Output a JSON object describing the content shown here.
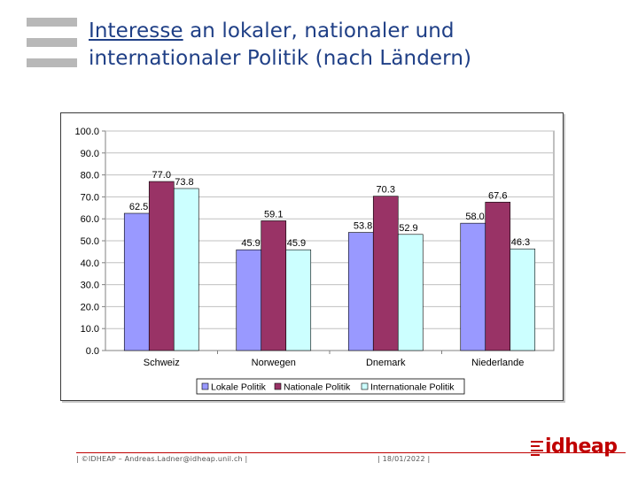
{
  "header": {
    "title_underlined": "Interesse",
    "title_rest": " an lokaler, nationaler und",
    "title_line2": "internationaler Politik (nach Ländern)"
  },
  "footer": {
    "left": "| ©IDHEAP – Andreas.Ladner@idheap.unil.ch |",
    "date": "| 18/01/2022 |",
    "brand": "idheap"
  },
  "colors": {
    "title": "#1f3f86",
    "lokal": "#9999ff",
    "national": "#993366",
    "international": "#ccffff",
    "plot_bg": "#ffffff",
    "grid": "#c0c0c0",
    "footer": "#c00000"
  },
  "chart_data": {
    "type": "bar",
    "title": "",
    "xlabel": "",
    "ylabel": "",
    "ylim": [
      0,
      100
    ],
    "yticks": [
      "0.0",
      "10.0",
      "20.0",
      "30.0",
      "40.0",
      "50.0",
      "60.0",
      "70.0",
      "80.0",
      "90.0",
      "100.0"
    ],
    "categories": [
      "Schweiz",
      "Norwegen",
      "Dnemark",
      "Niederlande"
    ],
    "series": [
      {
        "name": "Lokale Politik",
        "values": [
          62.5,
          45.9,
          53.8,
          58.0
        ],
        "labels": [
          "62.5",
          "45.9",
          "53.8",
          "58.0"
        ]
      },
      {
        "name": "Nationale Politik",
        "values": [
          77.0,
          59.1,
          70.3,
          67.6
        ],
        "labels": [
          "77.0",
          "59.1",
          "70.3",
          "67.6"
        ]
      },
      {
        "name": "Internationale Politik",
        "values": [
          73.8,
          45.9,
          52.9,
          46.3
        ],
        "labels": [
          "73.8",
          "45.9",
          "52.9",
          "46.3"
        ]
      }
    ],
    "legend_position": "bottom"
  }
}
